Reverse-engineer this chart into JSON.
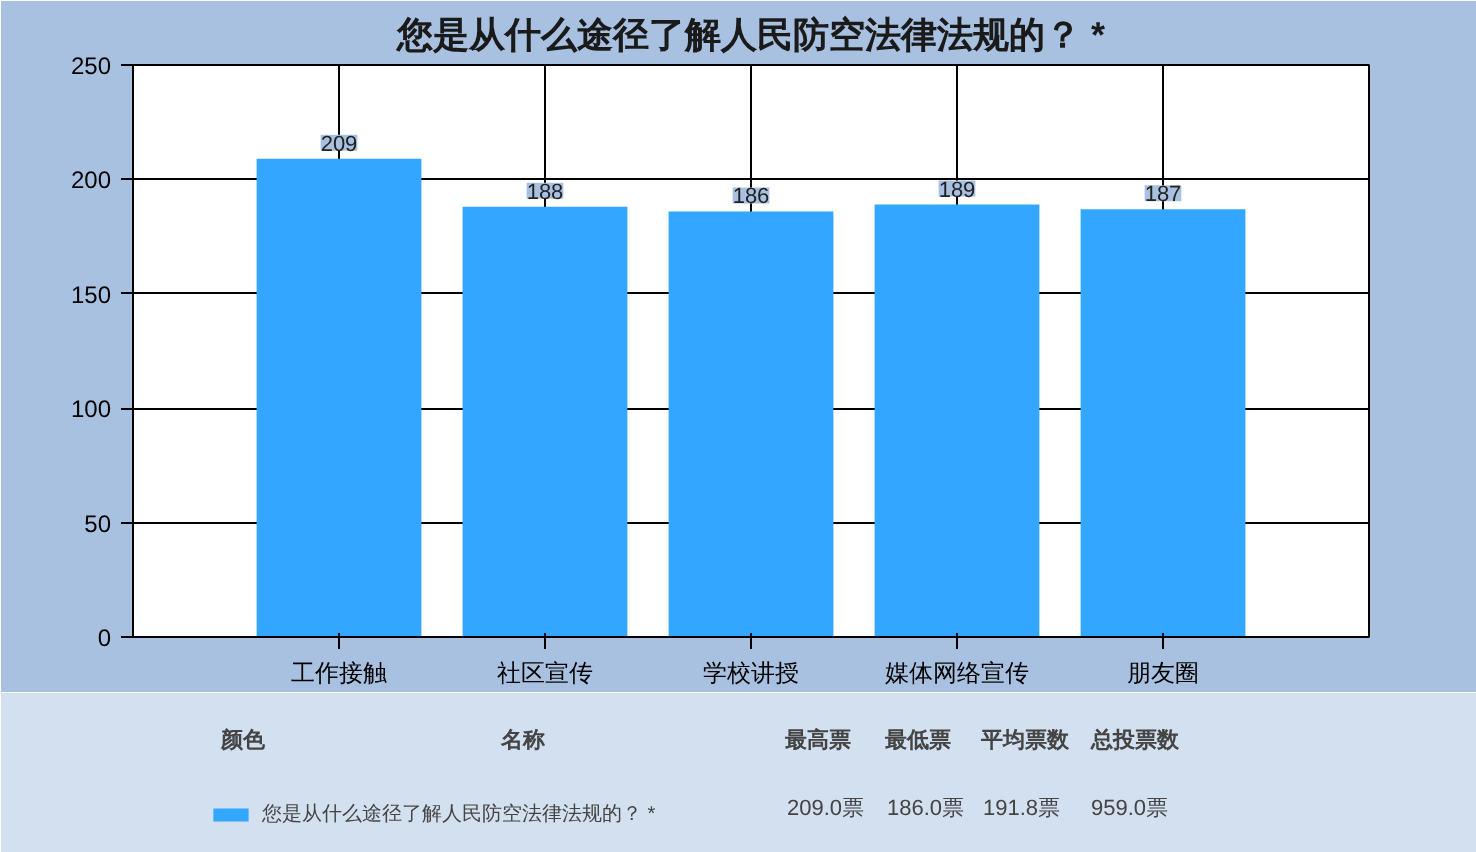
{
  "chart_data": {
    "type": "bar",
    "title": "您是从什么途径了解人民防空法律法规的？ *",
    "categories": [
      "工作接触",
      "社区宣传",
      "学校讲授",
      "媒体网络宣传",
      "朋友圈"
    ],
    "series": [
      {
        "name": "您是从什么途径了解人民防空法律法规的？ *",
        "color": "#33a6ff",
        "values": [
          209,
          188,
          186,
          189,
          187
        ]
      }
    ],
    "ylim": [
      0,
      250
    ],
    "yticks": [
      0,
      50,
      100,
      150,
      200,
      250
    ],
    "grid": true,
    "data_labels": true,
    "legend": "bottom",
    "annotations": [
      "颜色",
      "名称",
      "最高票",
      "最低票",
      "平均票数",
      "总投票数",
      "209.0票",
      "186.0票",
      "191.8票",
      "959.0票"
    ]
  }
}
